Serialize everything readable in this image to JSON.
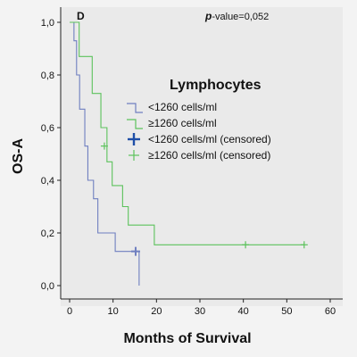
{
  "chart_data": {
    "type": "line",
    "subtype": "kaplan-meier",
    "panel_label": "D",
    "pvalue": {
      "prefix": "p",
      "text": "-value=0,052"
    },
    "xlabel": "Months of Survival",
    "ylabel": "OS-A",
    "xlim": [
      0,
      60
    ],
    "ylim": [
      0,
      1
    ],
    "x_ticks": [
      0,
      10,
      20,
      30,
      40,
      50,
      60
    ],
    "x_tick_labels": [
      "0",
      "10",
      "20",
      "30",
      "40",
      "50",
      "60"
    ],
    "y_ticks": [
      0,
      0.2,
      0.4,
      0.6,
      0.8,
      1.0
    ],
    "y_tick_labels": [
      "0,0",
      "0,2",
      "0,4",
      "0,6",
      "0,8",
      "1,0"
    ],
    "grid": false,
    "legend": {
      "title": "Lymphocytes",
      "placement": "right",
      "entries": [
        "<1260 cells/ml",
        "≥1260 cells/ml",
        "<1260 cells/ml (censored)",
        "≥1260 cells/ml (censored)"
      ]
    },
    "series": [
      {
        "name": "<1260 cells/ml",
        "color": "#6f7fc0",
        "steps": [
          [
            0,
            1.0
          ],
          [
            1,
            0.93
          ],
          [
            1.6,
            0.8
          ],
          [
            2.3,
            0.67
          ],
          [
            3.5,
            0.53
          ],
          [
            4.2,
            0.4
          ],
          [
            5.5,
            0.33
          ],
          [
            6.5,
            0.2
          ],
          [
            10.5,
            0.13
          ],
          [
            16,
            0.0
          ]
        ],
        "end_x": 16,
        "censored": [
          [
            15.2,
            0.13
          ]
        ]
      },
      {
        "name": "≥1260 cells/ml",
        "color": "#5cc25c",
        "steps": [
          [
            0,
            1.0
          ],
          [
            2.2,
            0.87
          ],
          [
            5.2,
            0.73
          ],
          [
            7.2,
            0.6
          ],
          [
            8.6,
            0.47
          ],
          [
            9.8,
            0.38
          ],
          [
            12.2,
            0.3
          ],
          [
            13.5,
            0.23
          ],
          [
            19.5,
            0.155
          ]
        ],
        "end_x": 54,
        "censored": [
          [
            8,
            0.53
          ],
          [
            40.5,
            0.155
          ],
          [
            54,
            0.155
          ]
        ]
      }
    ]
  }
}
